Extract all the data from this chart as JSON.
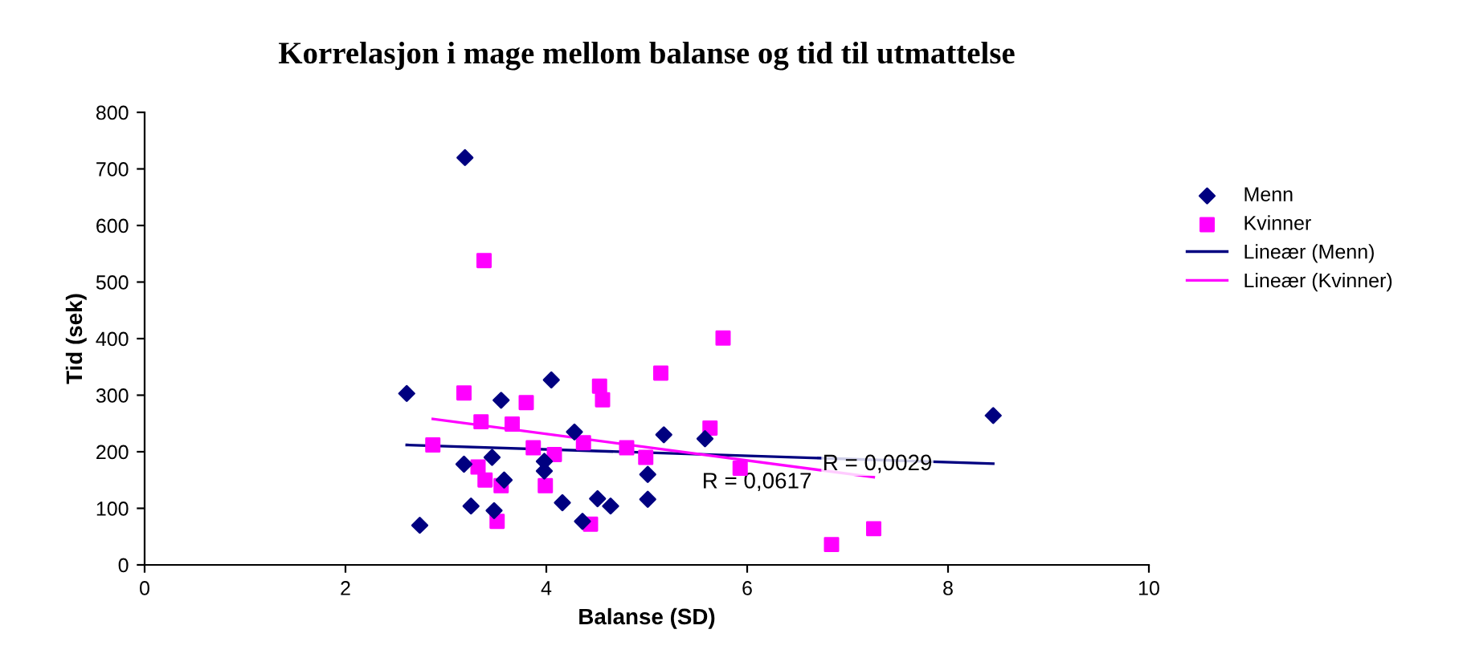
{
  "chart_data": {
    "type": "scatter",
    "title": "Korrelasjon i mage mellom balanse og tid til utmattelse",
    "xlabel": "Balanse (SD)",
    "ylabel": "Tid (sek)",
    "xlim": [
      0,
      10
    ],
    "xticks": [
      0,
      2,
      4,
      6,
      8,
      10
    ],
    "ylim": [
      0,
      800
    ],
    "yticks": [
      0,
      100,
      200,
      300,
      400,
      500,
      600,
      700,
      800
    ],
    "grid": false,
    "legend": "right",
    "series": [
      {
        "name": "Menn",
        "marker": "diamond",
        "color": "#000080",
        "x": [
          3.19,
          2.61,
          3.55,
          4.05,
          4.28,
          5.17,
          5.58,
          3.18,
          3.46,
          3.58,
          3.98,
          3.98,
          5.01,
          3.25,
          3.48,
          4.16,
          4.51,
          4.64,
          5.01,
          2.74,
          4.36,
          8.45
        ],
        "values": [
          720,
          303,
          291,
          327,
          235,
          230,
          223,
          178,
          190,
          150,
          183,
          166,
          160,
          104,
          96,
          110,
          117,
          104,
          116,
          70,
          77,
          264
        ]
      },
      {
        "name": "Kvinner",
        "marker": "square",
        "color": "#ff00ff",
        "x": [
          3.38,
          5.76,
          5.14,
          3.18,
          3.8,
          4.53,
          4.56,
          3.35,
          3.66,
          5.63,
          2.87,
          3.87,
          4.08,
          4.37,
          4.8,
          4.99,
          3.32,
          3.39,
          3.55,
          3.99,
          3.51,
          4.44,
          5.93,
          7.26,
          6.84
        ],
        "values": [
          538,
          401,
          339,
          304,
          287,
          316,
          292,
          253,
          249,
          242,
          212,
          207,
          195,
          216,
          207,
          190,
          173,
          150,
          140,
          140,
          77,
          72,
          171,
          64,
          36
        ]
      },
      {
        "name": "Lineær (Menn)",
        "type": "line",
        "marker": "none",
        "color": "#000080",
        "x": [
          2.61,
          8.45
        ],
        "values": [
          212,
          179
        ]
      },
      {
        "name": "Lineær (Kvinner)",
        "type": "line",
        "marker": "none",
        "color": "#ff00ff",
        "x": [
          2.87,
          7.26
        ],
        "values": [
          258,
          155
        ]
      }
    ],
    "annotations": [
      "R = 0,0617",
      "R = 0,0029"
    ]
  }
}
